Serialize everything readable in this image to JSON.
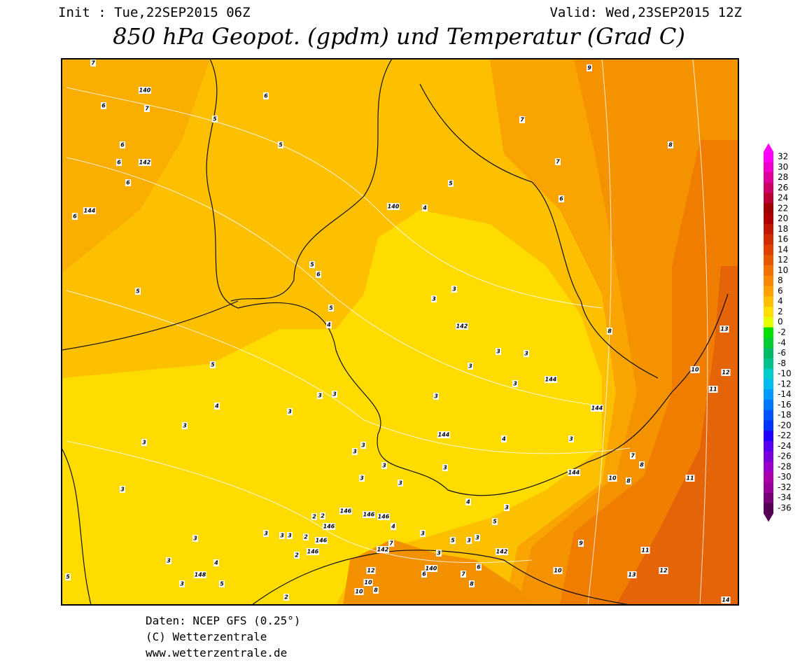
{
  "header": {
    "init": "Init : Tue,22SEP2015 06Z",
    "valid": "Valid: Wed,23SEP2015 12Z",
    "title": "850 hPa Geopot. (gpdm) und Temperatur (Grad C)"
  },
  "colorbar": {
    "labels": [
      32,
      30,
      28,
      26,
      24,
      22,
      20,
      18,
      16,
      14,
      12,
      10,
      8,
      6,
      4,
      2,
      0,
      -2,
      -4,
      -6,
      -8,
      -10,
      -12,
      -14,
      -16,
      -18,
      -20,
      -22,
      -24,
      -26,
      -28,
      -30,
      -32,
      -34,
      -36
    ],
    "colors": [
      "#ff00ff",
      "#ee00cc",
      "#dd0099",
      "#cc0066",
      "#b80033",
      "#a00000",
      "#b00000",
      "#c01800",
      "#d02c00",
      "#e04000",
      "#e85800",
      "#f07000",
      "#f78800",
      "#fba200",
      "#fdbf00",
      "#ffdf00",
      "#e6ff00",
      "#00e000",
      "#00cc33",
      "#00bb66",
      "#00c08c",
      "#00cccc",
      "#00bbee",
      "#0099ff",
      "#0077ff",
      "#0055ff",
      "#0033ff",
      "#2200ff",
      "#5500ee",
      "#7700dd",
      "#9900cc",
      "#aa00aa",
      "#990099",
      "#770077",
      "#550055"
    ]
  },
  "map": {
    "contour_labels": [
      7,
      140,
      6,
      7,
      6,
      5,
      6,
      5,
      6,
      142,
      6,
      144,
      6,
      9,
      7,
      7,
      5,
      6,
      140,
      4,
      8,
      5,
      6,
      5,
      3,
      3,
      5,
      4,
      142,
      8,
      13,
      3,
      3,
      5,
      3,
      10,
      12,
      144,
      3,
      11,
      3,
      3,
      3,
      4,
      144,
      3,
      3,
      144,
      4,
      3,
      3,
      3,
      3,
      7,
      8,
      3,
      3,
      144,
      3,
      3,
      3,
      10,
      8,
      11,
      4,
      146,
      146,
      146,
      2,
      2,
      4,
      5,
      146,
      3,
      3,
      3,
      3,
      2,
      146,
      3,
      5,
      3,
      3,
      3,
      9,
      142,
      7,
      146,
      2,
      142,
      3,
      11,
      3,
      4,
      140,
      6,
      148,
      6,
      7,
      12,
      10,
      12,
      13,
      3,
      5,
      10,
      8,
      10,
      8,
      2,
      5,
      14
    ]
  },
  "footer": {
    "source": "Daten: NCEP GFS (0.25°)",
    "copyright": "(C) Wetterzentrale",
    "url": "www.wetterzentrale.de"
  }
}
